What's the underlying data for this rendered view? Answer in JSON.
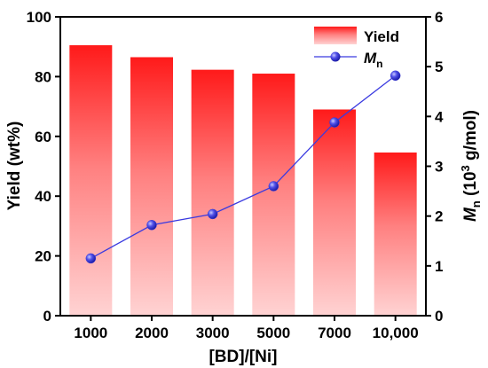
{
  "chart_data": {
    "type": "bar+line",
    "categories": [
      "1000",
      "2000",
      "3000",
      "5000",
      "7000",
      "10,000"
    ],
    "xlabel": "[BD]/[Ni]",
    "ylabel_left": "Yield (wt%)",
    "ylabel_right_main": "M",
    "ylabel_right_sub": "n",
    "ylabel_right_rest_1": " (10",
    "ylabel_right_sup": "3",
    "ylabel_right_rest_2": " g/mol)",
    "ylim_left": [
      0,
      100
    ],
    "yticks_left": [
      "0",
      "20",
      "40",
      "60",
      "80",
      "100"
    ],
    "ylim_right": [
      0,
      6
    ],
    "yticks_right": [
      "0",
      "1",
      "2",
      "3",
      "4",
      "5",
      "6"
    ],
    "grid": false,
    "legend_position": "top-right",
    "series": [
      {
        "name": "Yield",
        "kind": "bar",
        "axis": "left",
        "values": [
          90.5,
          86.5,
          82.3,
          81.0,
          69.0,
          54.6
        ],
        "color_top": "#ff1a1a",
        "color_bottom": "#ffd3d3"
      },
      {
        "name_main": "M",
        "name_sub": "n",
        "kind": "line",
        "axis": "right",
        "values": [
          1.15,
          1.82,
          2.04,
          2.6,
          3.88,
          4.82
        ],
        "line_color": "#3a3ae0",
        "marker_color": "#3c3cd6"
      }
    ]
  }
}
